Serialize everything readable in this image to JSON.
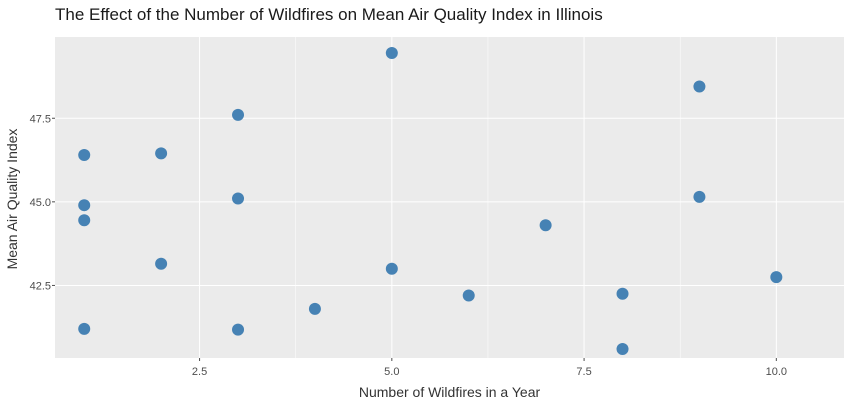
{
  "chart_data": {
    "type": "scatter",
    "title": "The Effect of the Number of Wildfires on Mean Air Quality Index in Illinois",
    "xlabel": "Number of Wildfires in a Year",
    "ylabel": "Mean Air Quality Index",
    "xlim": [
      0.62,
      10.88
    ],
    "ylim": [
      40.33,
      49.93
    ],
    "xticks": [
      {
        "value": 2.5,
        "label": "2.5"
      },
      {
        "value": 5,
        "label": "5.0"
      },
      {
        "value": 7.5,
        "label": "7.5"
      },
      {
        "value": 10,
        "label": "10.0"
      }
    ],
    "yticks": [
      {
        "value": 42.5,
        "label": "42.5"
      },
      {
        "value": 45,
        "label": "45.0"
      },
      {
        "value": 47.5,
        "label": "47.5"
      }
    ],
    "grid": true,
    "point_color": "#4682b4",
    "panel_color": "#ebebeb",
    "points": [
      {
        "x": 1,
        "y": 46.4
      },
      {
        "x": 1,
        "y": 44.9
      },
      {
        "x": 1,
        "y": 44.45
      },
      {
        "x": 1,
        "y": 41.2
      },
      {
        "x": 2,
        "y": 46.45
      },
      {
        "x": 2,
        "y": 43.15
      },
      {
        "x": 3,
        "y": 47.6
      },
      {
        "x": 3,
        "y": 45.1
      },
      {
        "x": 3,
        "y": 41.18
      },
      {
        "x": 4,
        "y": 41.8
      },
      {
        "x": 5,
        "y": 49.45
      },
      {
        "x": 5,
        "y": 43.0
      },
      {
        "x": 6,
        "y": 42.2
      },
      {
        "x": 7,
        "y": 44.3
      },
      {
        "x": 8,
        "y": 42.25
      },
      {
        "x": 8,
        "y": 40.6
      },
      {
        "x": 9,
        "y": 48.45
      },
      {
        "x": 9,
        "y": 45.15
      },
      {
        "x": 10,
        "y": 42.75
      }
    ]
  }
}
